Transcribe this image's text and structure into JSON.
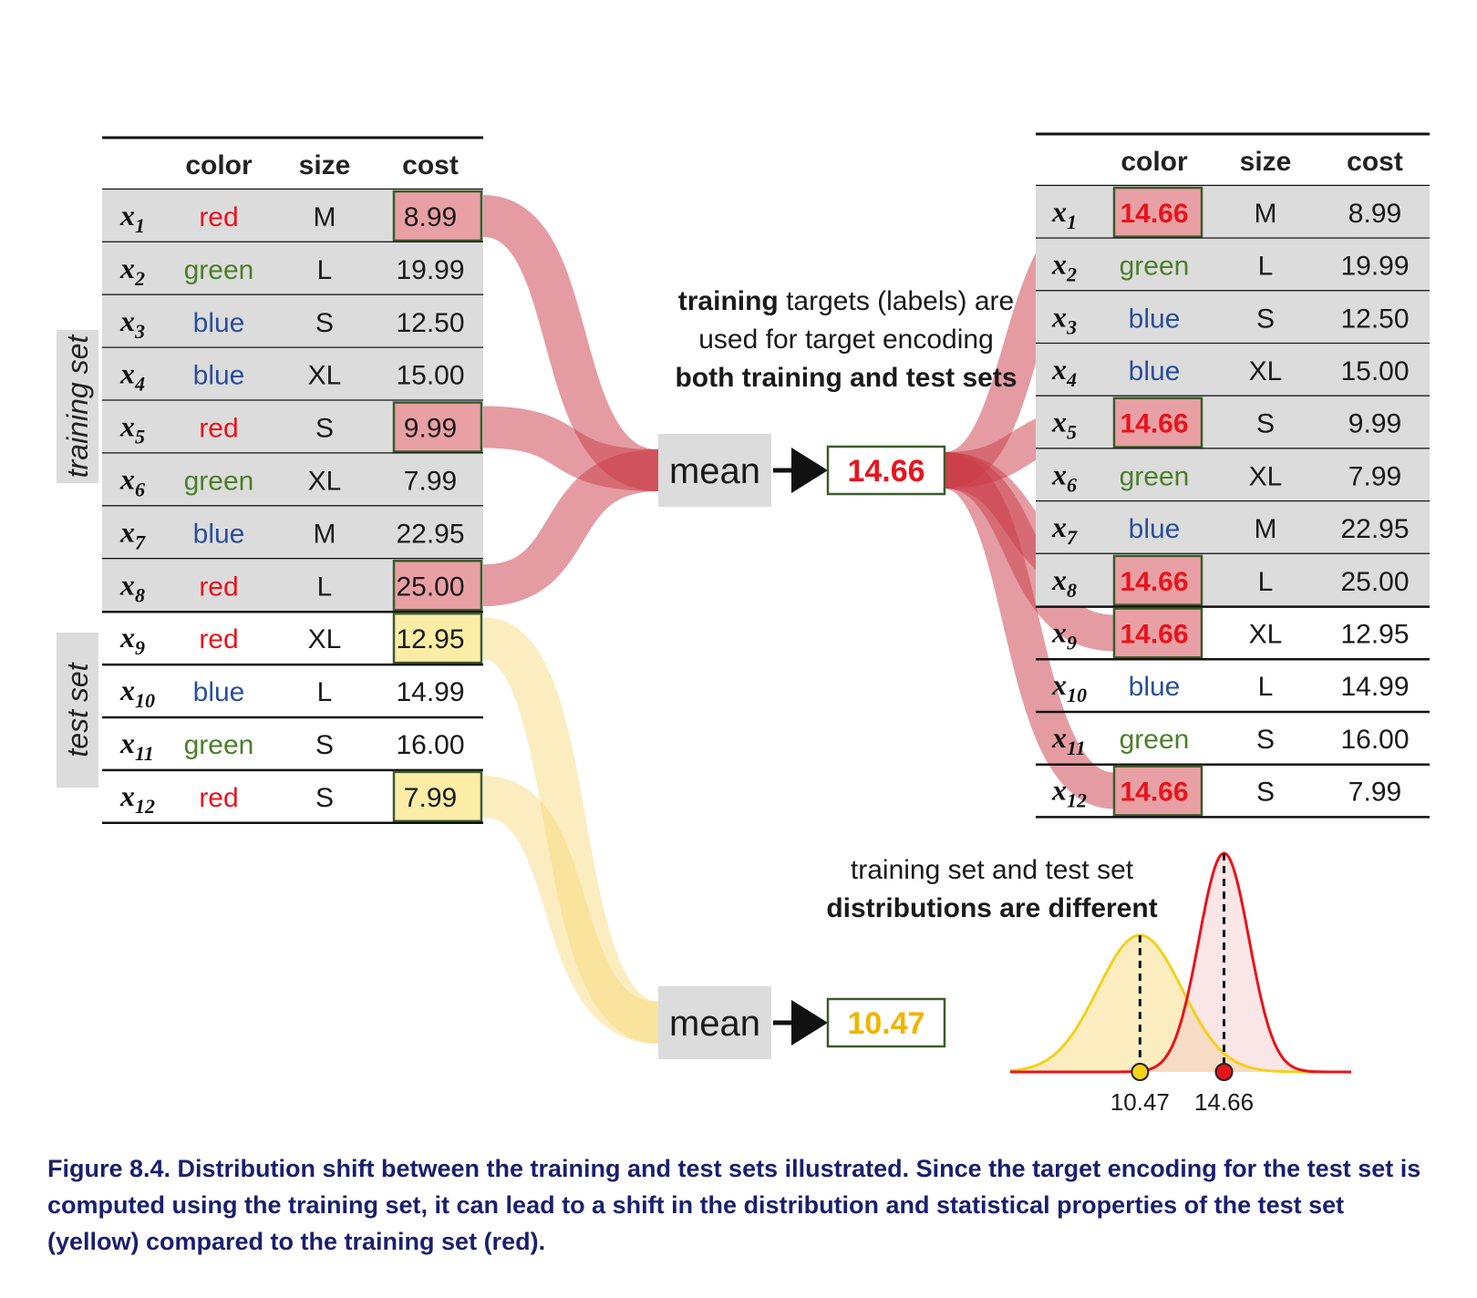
{
  "columns": [
    "color",
    "size",
    "cost"
  ],
  "row_labels": [
    {
      "base": "x",
      "sub": "1"
    },
    {
      "base": "x",
      "sub": "2"
    },
    {
      "base": "x",
      "sub": "3"
    },
    {
      "base": "x",
      "sub": "4"
    },
    {
      "base": "x",
      "sub": "5"
    },
    {
      "base": "x",
      "sub": "6"
    },
    {
      "base": "x",
      "sub": "7"
    },
    {
      "base": "x",
      "sub": "8"
    },
    {
      "base": "x",
      "sub": "9"
    },
    {
      "base": "x",
      "sub": "10"
    },
    {
      "base": "x",
      "sub": "11"
    },
    {
      "base": "x",
      "sub": "12"
    }
  ],
  "left_table": {
    "rows": [
      {
        "color": "red",
        "size": "M",
        "cost": "8.99"
      },
      {
        "color": "green",
        "size": "L",
        "cost": "19.99"
      },
      {
        "color": "blue",
        "size": "S",
        "cost": "12.50"
      },
      {
        "color": "blue",
        "size": "XL",
        "cost": "15.00"
      },
      {
        "color": "red",
        "size": "S",
        "cost": "9.99"
      },
      {
        "color": "green",
        "size": "XL",
        "cost": "7.99"
      },
      {
        "color": "blue",
        "size": "M",
        "cost": "22.95"
      },
      {
        "color": "red",
        "size": "L",
        "cost": "25.00"
      },
      {
        "color": "red",
        "size": "XL",
        "cost": "12.95"
      },
      {
        "color": "blue",
        "size": "L",
        "cost": "14.99"
      },
      {
        "color": "green",
        "size": "S",
        "cost": "16.00"
      },
      {
        "color": "red",
        "size": "S",
        "cost": "7.99"
      }
    ]
  },
  "right_table": {
    "rows": [
      {
        "color": "14.66",
        "size": "M",
        "cost": "8.99"
      },
      {
        "color": "green",
        "size": "L",
        "cost": "19.99"
      },
      {
        "color": "blue",
        "size": "S",
        "cost": "12.50"
      },
      {
        "color": "blue",
        "size": "XL",
        "cost": "15.00"
      },
      {
        "color": "14.66",
        "size": "S",
        "cost": "9.99"
      },
      {
        "color": "green",
        "size": "XL",
        "cost": "7.99"
      },
      {
        "color": "blue",
        "size": "M",
        "cost": "22.95"
      },
      {
        "color": "14.66",
        "size": "L",
        "cost": "25.00"
      },
      {
        "color": "14.66",
        "size": "XL",
        "cost": "12.95"
      },
      {
        "color": "blue",
        "size": "L",
        "cost": "14.99"
      },
      {
        "color": "green",
        "size": "S",
        "cost": "16.00"
      },
      {
        "color": "14.66",
        "size": "S",
        "cost": "7.99"
      }
    ]
  },
  "training_rows": 8,
  "highlight_left": {
    "training": [
      0,
      4,
      7
    ],
    "test": [
      8,
      11
    ]
  },
  "highlight_right": [
    0,
    4,
    7,
    8,
    11
  ],
  "side_labels": {
    "training": "training set",
    "test": "test set"
  },
  "annotation_top": {
    "line1_bold": "training",
    "line1_rest": " targets (labels) are",
    "line2": "used for target encoding",
    "line3": "both training and test sets"
  },
  "annotation_dist": {
    "line1": "training set and test set",
    "line2": "distributions are different"
  },
  "mean_label": "mean",
  "train_mean": "14.66",
  "test_mean": "10.47",
  "distribution_ticks": [
    "10.47",
    "14.66"
  ],
  "caption": "Figure 8.4. Distribution shift between the training and test sets illustrated. Since the target encoding for the test set is computed using the training set, it can lead to a shift in the distribution and statistical properties of the test set (yellow) compared to the training set (red).",
  "colors": {
    "red": "#e8141c",
    "green": "#4b7f2a",
    "blue": "#2a4f9c",
    "flow_red": "#c93a45",
    "flow_yellow": "#f7d774",
    "cell_red": "#e9a0a5",
    "cell_yellow": "#fbeda6",
    "row_gray": "#dcdcdc",
    "cell_border": "#3b5b2a",
    "mean_yellow": "#f0b400",
    "caption": "#1a1f6e"
  },
  "icons": [
    "arrow-right-icon"
  ]
}
